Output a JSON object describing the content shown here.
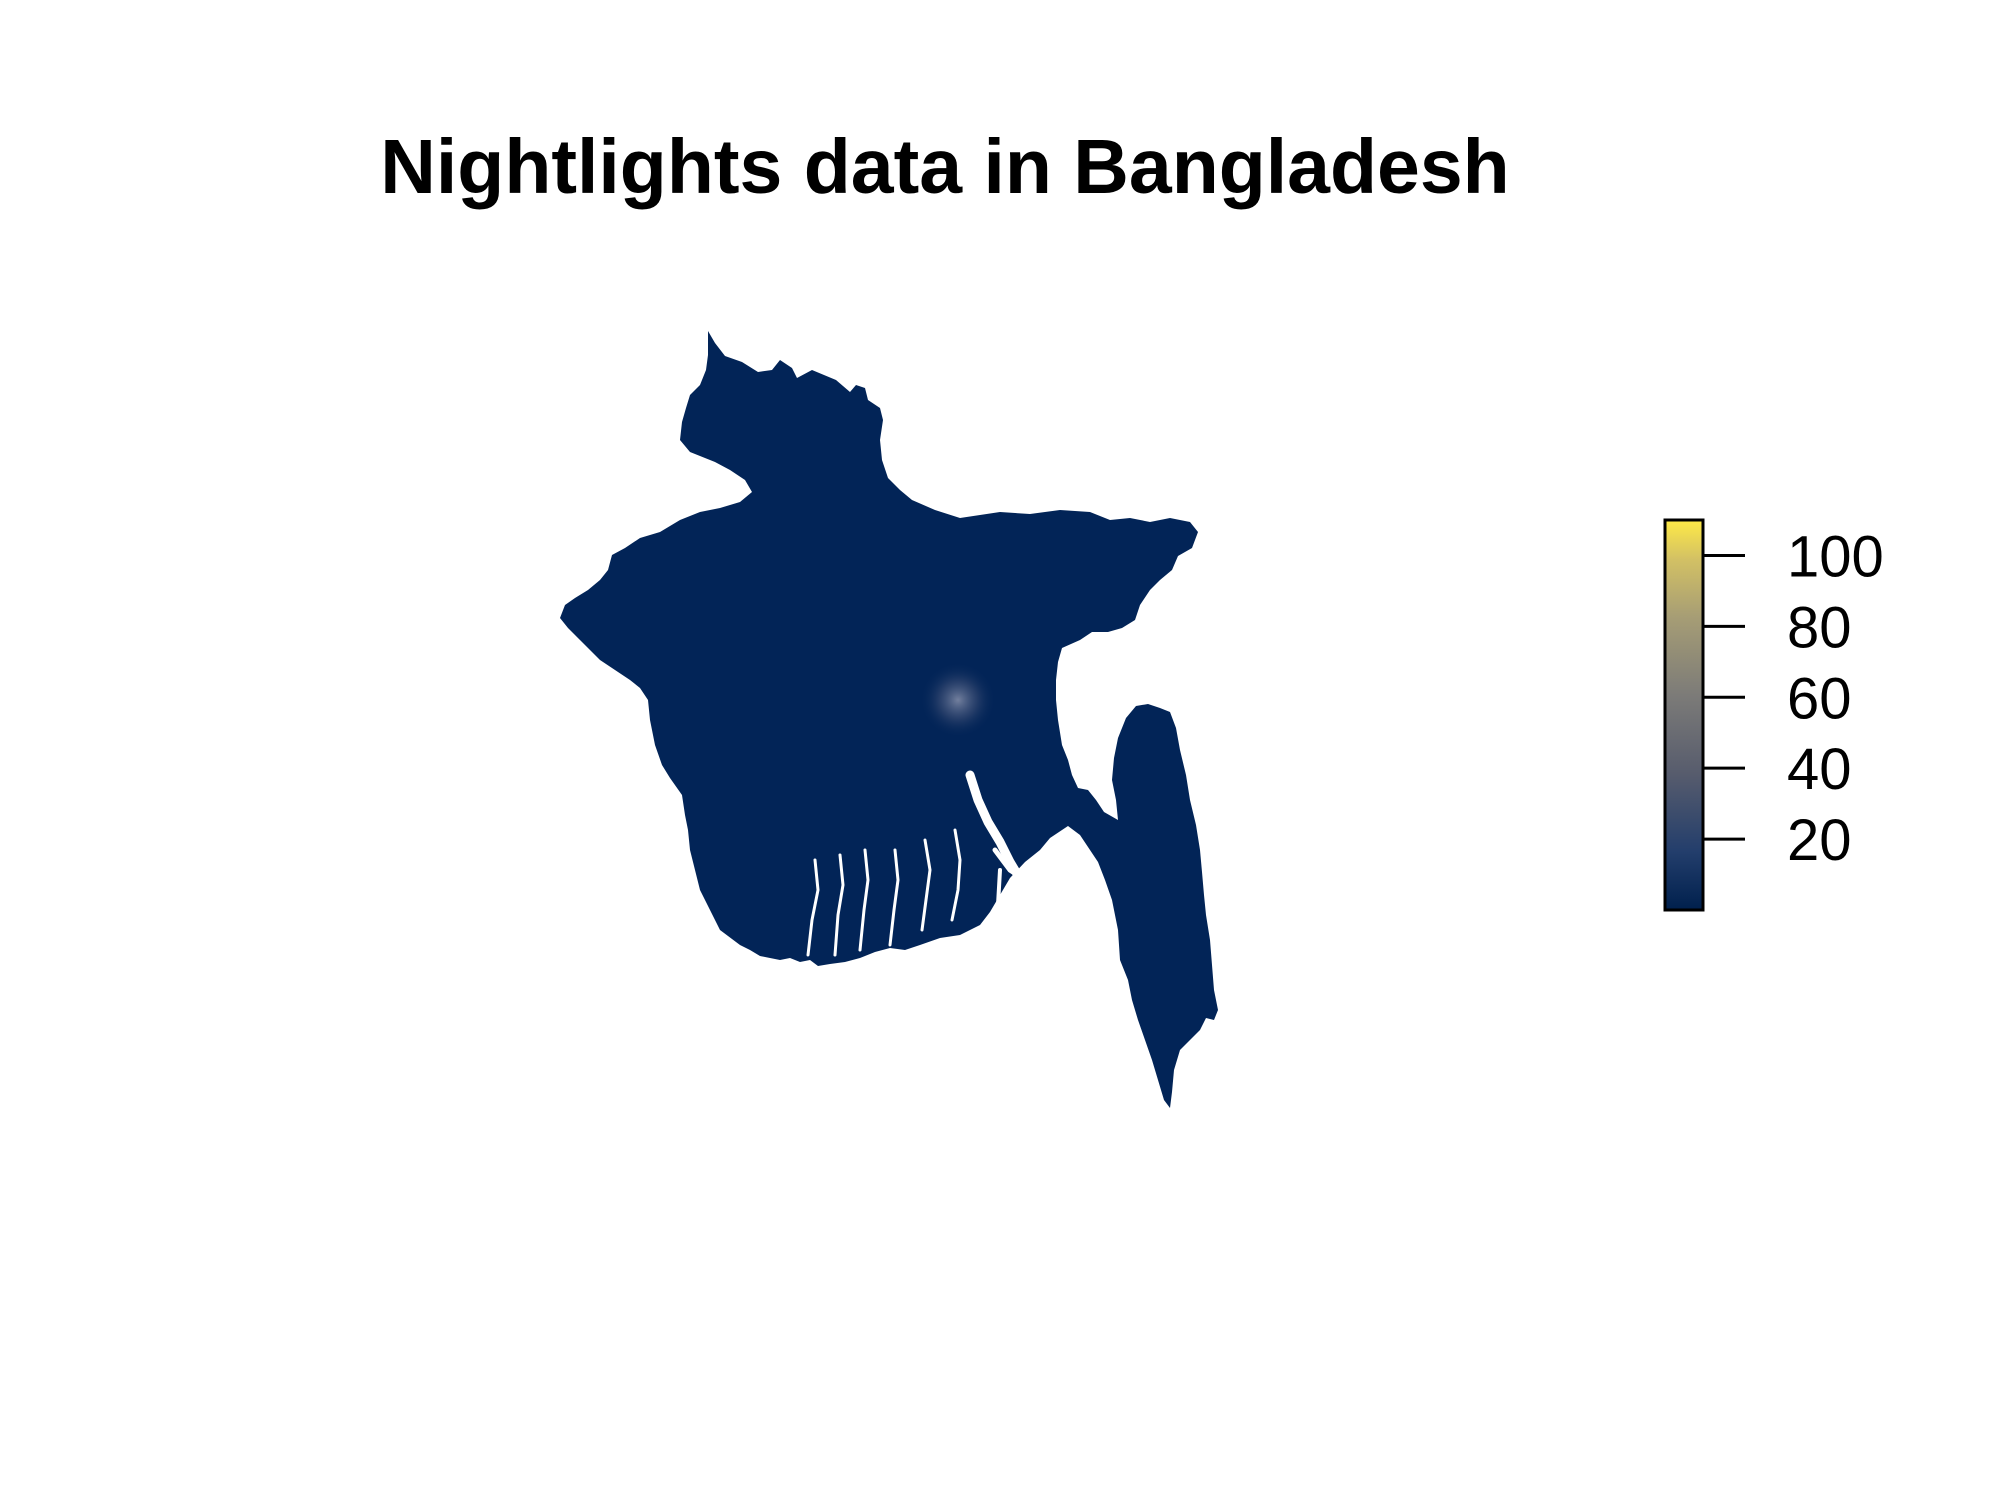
{
  "title": "Nightlights data in Bangladesh",
  "colors": {
    "background": "#ffffff",
    "land": "#022457",
    "city_glow": "#3b4d74",
    "scale_low": "#00204d",
    "scale_mid": "#7c7b78",
    "scale_high": "#ffea46"
  },
  "legend": {
    "min": 0,
    "max": 110,
    "ticks": [
      {
        "value": 20,
        "label": "20"
      },
      {
        "value": 40,
        "label": "40"
      },
      {
        "value": 60,
        "label": "60"
      },
      {
        "value": 80,
        "label": "80"
      },
      {
        "value": 100,
        "label": "100"
      }
    ],
    "gradient": [
      {
        "offset": 0.0,
        "color": "#00204d"
      },
      {
        "offset": 0.15,
        "color": "#233e6c"
      },
      {
        "offset": 0.35,
        "color": "#575c6d"
      },
      {
        "offset": 0.55,
        "color": "#7c7b78"
      },
      {
        "offset": 0.75,
        "color": "#a69d75"
      },
      {
        "offset": 0.9,
        "color": "#d3c164"
      },
      {
        "offset": 1.0,
        "color": "#ffea46"
      }
    ]
  }
}
